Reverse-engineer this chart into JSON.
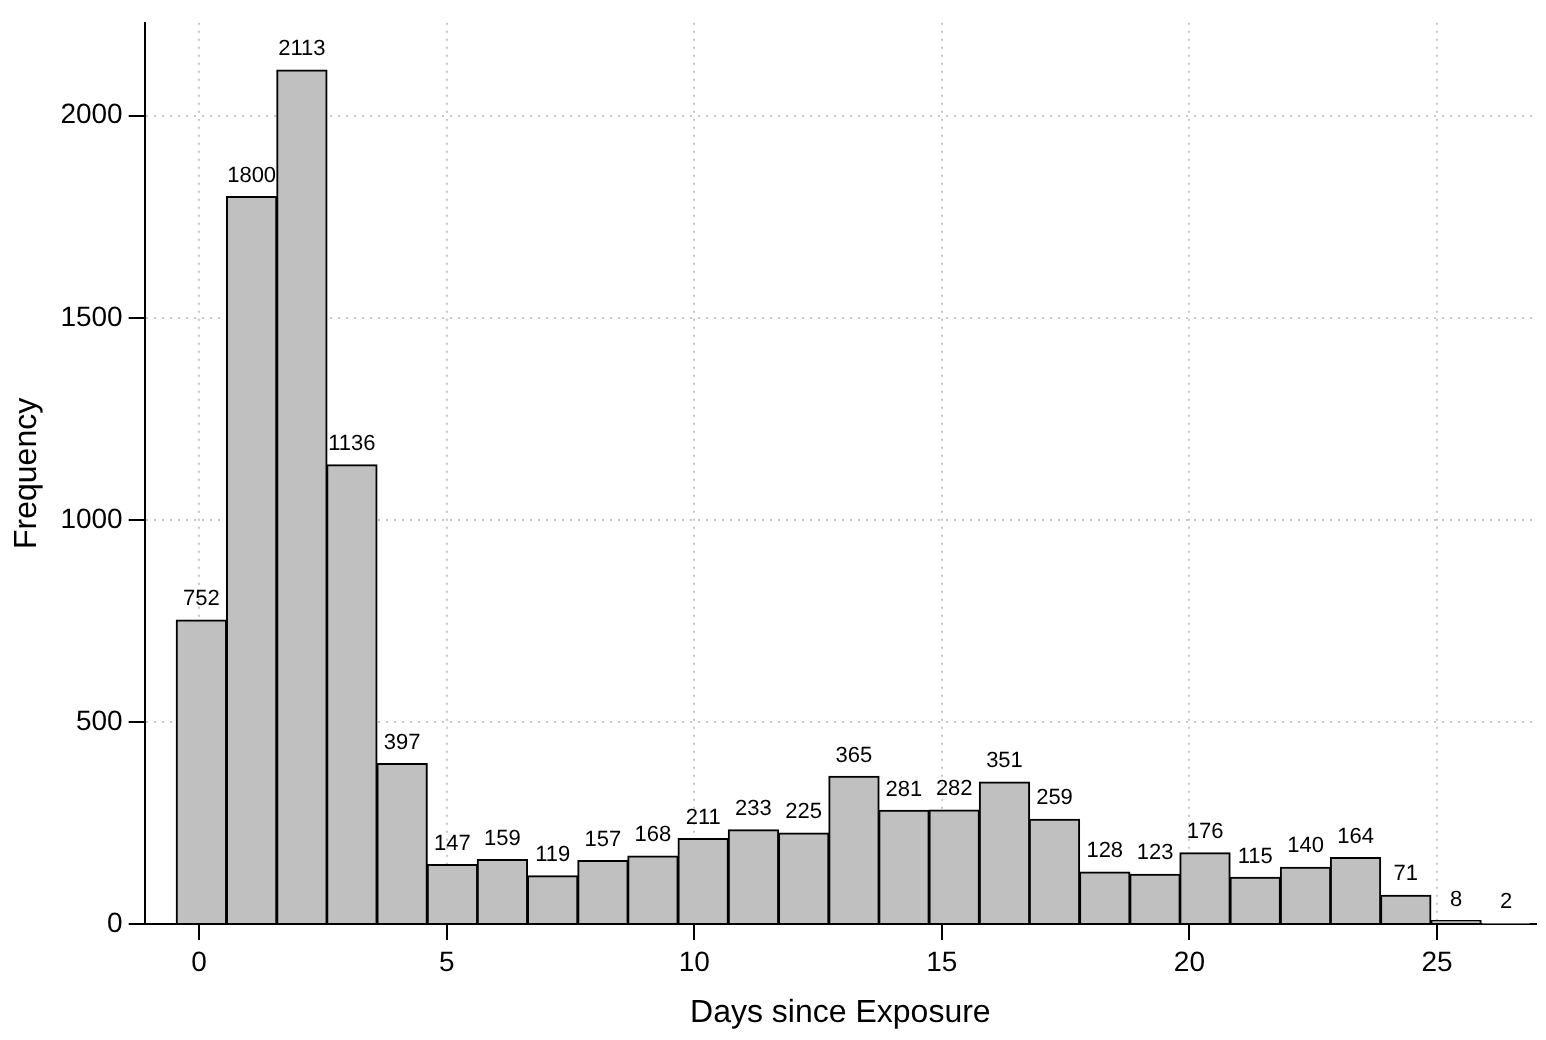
{
  "chart_data": {
    "type": "histogram",
    "xlabel": "Days since Exposure",
    "ylabel": "Frequency",
    "bins": [
      -0.46,
      0.55,
      1.57,
      2.58,
      3.59,
      4.61,
      5.62,
      6.63,
      7.65,
      8.66,
      9.67,
      10.69,
      11.7,
      12.72,
      13.73,
      14.74,
      15.76,
      16.77,
      17.78,
      18.8,
      19.81,
      20.82,
      21.84,
      22.85,
      23.86,
      24.88,
      25.89,
      26.9
    ],
    "values": [
      752,
      1800,
      2113,
      1136,
      397,
      147,
      159,
      119,
      157,
      168,
      211,
      233,
      225,
      365,
      281,
      282,
      351,
      259,
      128,
      123,
      176,
      115,
      140,
      164,
      71,
      8,
      2
    ],
    "color": "#c0c0c0",
    "data_labels": true,
    "grid": true,
    "xlim": [
      -1.1,
      27
    ],
    "xticks": [
      0,
      5,
      10,
      15,
      20,
      25
    ],
    "ylim": [
      0,
      2230
    ],
    "yticks": [
      0,
      500,
      1000,
      1500,
      2000
    ]
  }
}
